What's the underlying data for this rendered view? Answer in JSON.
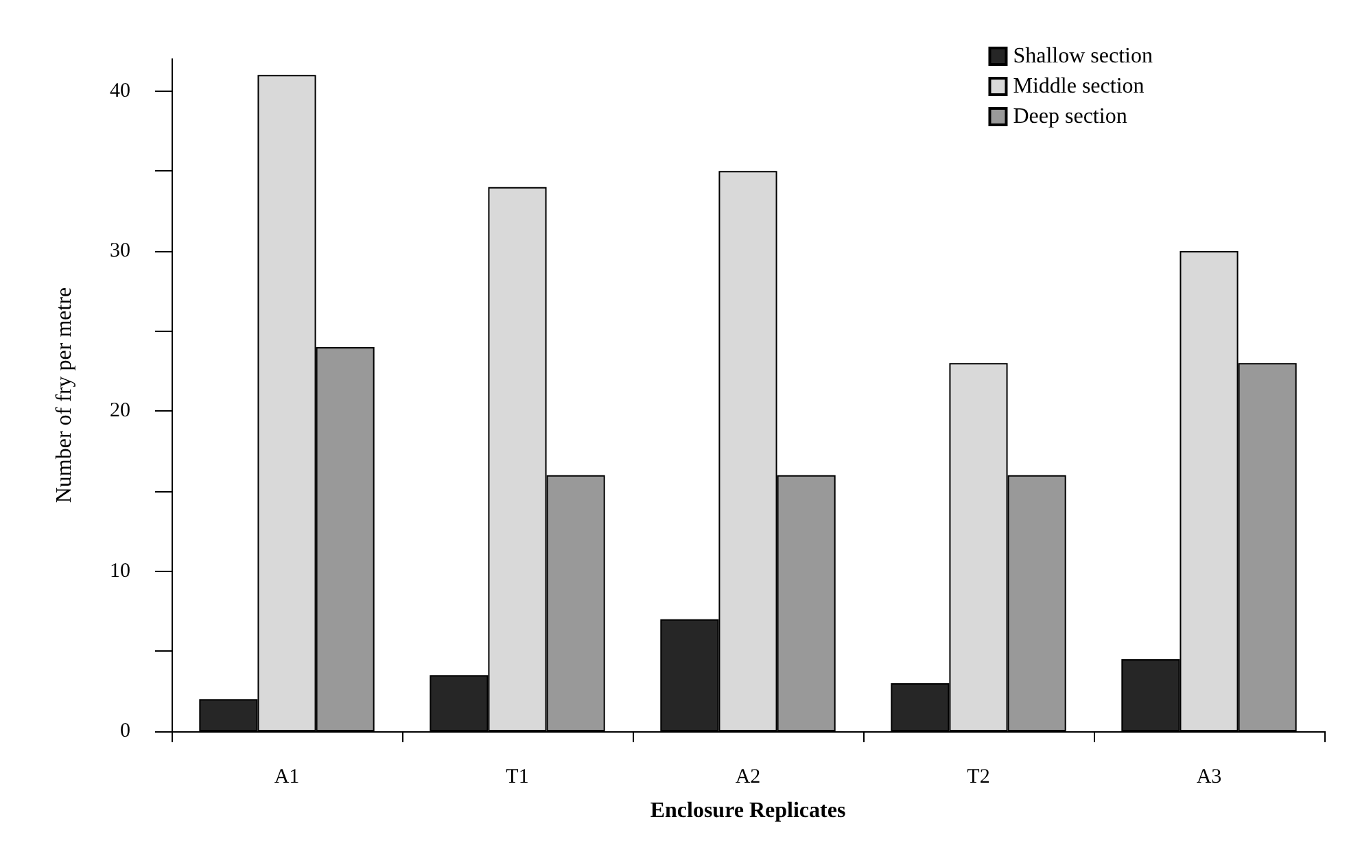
{
  "chart_data": {
    "type": "bar",
    "xlabel": "Enclosure Replicates",
    "ylabel": "Number of fry per metre",
    "categories": [
      "A1",
      "T1",
      "A2",
      "T2",
      "A3"
    ],
    "series": [
      {
        "name": "Shallow section",
        "color": "#262626",
        "values": [
          2,
          3.5,
          7,
          3,
          4.5
        ]
      },
      {
        "name": "Middle section",
        "color": "#d9d9d9",
        "values": [
          41,
          34,
          35,
          23,
          30
        ]
      },
      {
        "name": "Deep section",
        "color": "#999999",
        "values": [
          24,
          16,
          16,
          16,
          23
        ]
      }
    ],
    "ylim": [
      0,
      42
    ],
    "yticks": [
      0,
      {
        "value": 5,
        "label": null
      },
      10,
      {
        "value": 15,
        "label": null
      },
      20,
      {
        "value": 25,
        "label": null
      },
      30,
      {
        "value": 35,
        "label": null
      },
      40
    ],
    "grid": false,
    "legend": "top right"
  }
}
